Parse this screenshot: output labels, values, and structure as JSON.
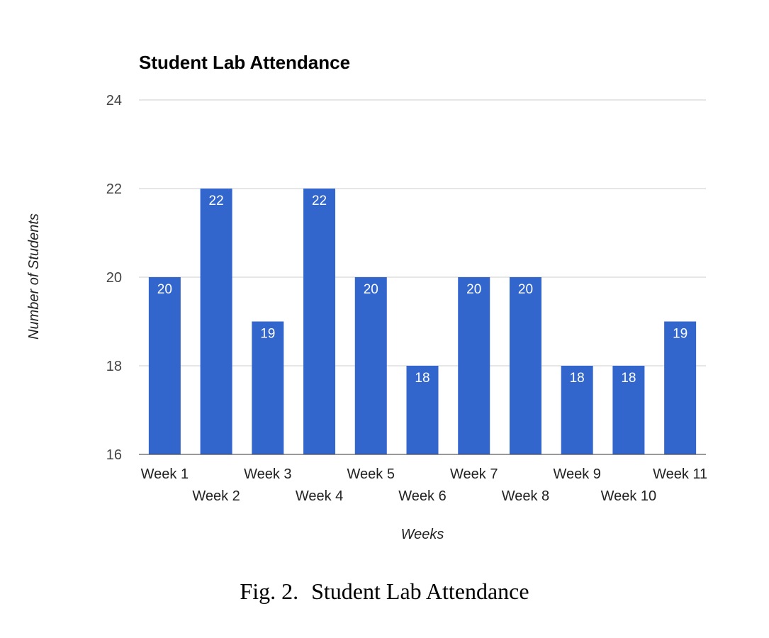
{
  "chart_data": {
    "type": "bar",
    "title": "Student Lab Attendance",
    "xlabel": "Weeks",
    "ylabel": "Number of Students",
    "categories": [
      "Week 1",
      "Week 2",
      "Week 3",
      "Week 4",
      "Week 5",
      "Week 6",
      "Week 7",
      "Week 8",
      "Week 9",
      "Week 10",
      "Week 11"
    ],
    "values": [
      20,
      22,
      19,
      22,
      20,
      18,
      20,
      20,
      18,
      18,
      19
    ],
    "ylim": [
      16,
      24
    ],
    "yticks": [
      16,
      18,
      20,
      22,
      24
    ],
    "grid": true,
    "bar_color": "#3366cc",
    "data_labels": true
  },
  "caption": {
    "number": "Fig. 2.",
    "text": "Student Lab Attendance"
  }
}
